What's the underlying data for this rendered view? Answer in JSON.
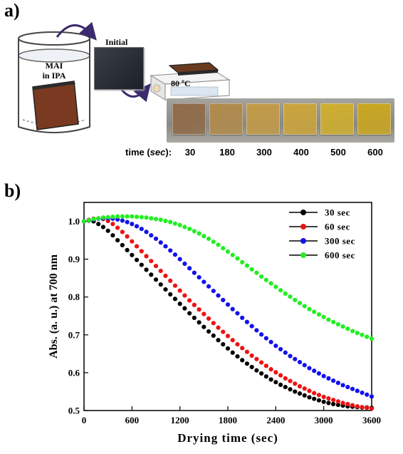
{
  "panel_a": {
    "label": "a)",
    "solution_line1": "MAI",
    "solution_line2": "in IPA",
    "initial_label": "Initial",
    "temperature": "80 ºC",
    "time_prefix": "time (",
    "time_unit": "sec",
    "time_suffix": "):",
    "films": [
      {
        "time": "30",
        "color": "#8f6a47"
      },
      {
        "time": "180",
        "color": "#b08a4a"
      },
      {
        "time": "300",
        "color": "#c29a45"
      },
      {
        "time": "400",
        "color": "#cba43a"
      },
      {
        "time": "500",
        "color": "#cfae2c"
      },
      {
        "time": "600",
        "color": "#c9a61e"
      }
    ]
  },
  "panel_b": {
    "label": "b)"
  },
  "chart_data": {
    "type": "scatter",
    "xlabel": "Drying time (sec)",
    "ylabel": "Abs. (a. u.) at 700 nm",
    "xlim": [
      0,
      3600
    ],
    "ylim": [
      0.5,
      1.05
    ],
    "xticks": [
      "0",
      "600",
      "1200",
      "1800",
      "2400",
      "3000",
      "3600"
    ],
    "yticks": [
      "0.5",
      "0.6",
      "0.7",
      "0.8",
      "0.9",
      "1.0"
    ],
    "legend_position": "top-right",
    "x": [
      0,
      60,
      120,
      180,
      240,
      300,
      360,
      420,
      480,
      540,
      600,
      660,
      720,
      780,
      840,
      900,
      960,
      1020,
      1080,
      1140,
      1200,
      1260,
      1320,
      1380,
      1440,
      1500,
      1560,
      1620,
      1680,
      1740,
      1800,
      1860,
      1920,
      1980,
      2040,
      2100,
      2160,
      2220,
      2280,
      2340,
      2400,
      2460,
      2520,
      2580,
      2640,
      2700,
      2760,
      2820,
      2880,
      2940,
      3000,
      3060,
      3120,
      3180,
      3240,
      3300,
      3360,
      3420,
      3480,
      3540,
      3600
    ],
    "series": [
      {
        "name": "30 sec",
        "color": "#000000",
        "values": [
          1.0,
          1.002,
          1.0,
          0.993,
          0.985,
          0.975,
          0.963,
          0.95,
          0.937,
          0.924,
          0.911,
          0.898,
          0.885,
          0.872,
          0.859,
          0.846,
          0.833,
          0.82,
          0.807,
          0.795,
          0.782,
          0.77,
          0.757,
          0.745,
          0.733,
          0.721,
          0.709,
          0.698,
          0.686,
          0.675,
          0.664,
          0.653,
          0.643,
          0.633,
          0.624,
          0.615,
          0.606,
          0.598,
          0.59,
          0.582,
          0.575,
          0.568,
          0.562,
          0.556,
          0.55,
          0.545,
          0.54,
          0.535,
          0.531,
          0.527,
          0.523,
          0.52,
          0.517,
          0.515,
          0.513,
          0.511,
          0.51,
          0.509,
          0.508,
          0.508,
          0.507
        ]
      },
      {
        "name": "60 sec",
        "color": "#ee1111",
        "values": [
          1.0,
          1.004,
          1.007,
          1.008,
          1.006,
          1.001,
          0.993,
          0.983,
          0.972,
          0.96,
          0.947,
          0.934,
          0.921,
          0.908,
          0.895,
          0.882,
          0.869,
          0.856,
          0.843,
          0.83,
          0.817,
          0.804,
          0.791,
          0.779,
          0.767,
          0.755,
          0.743,
          0.731,
          0.719,
          0.708,
          0.697,
          0.686,
          0.675,
          0.665,
          0.655,
          0.645,
          0.636,
          0.627,
          0.618,
          0.609,
          0.601,
          0.593,
          0.585,
          0.578,
          0.571,
          0.564,
          0.558,
          0.552,
          0.546,
          0.541,
          0.536,
          0.532,
          0.528,
          0.524,
          0.52,
          0.517,
          0.514,
          0.511,
          0.509,
          0.507,
          0.505
        ]
      },
      {
        "name": "300 sec",
        "color": "#1111ee",
        "values": [
          1.0,
          1.003,
          1.005,
          1.007,
          1.008,
          1.008,
          1.007,
          1.005,
          1.002,
          0.998,
          0.993,
          0.987,
          0.98,
          0.972,
          0.963,
          0.954,
          0.944,
          0.934,
          0.923,
          0.912,
          0.9,
          0.888,
          0.876,
          0.864,
          0.852,
          0.84,
          0.828,
          0.816,
          0.804,
          0.792,
          0.78,
          0.768,
          0.757,
          0.745,
          0.734,
          0.723,
          0.712,
          0.701,
          0.691,
          0.681,
          0.671,
          0.662,
          0.653,
          0.644,
          0.636,
          0.628,
          0.62,
          0.612,
          0.605,
          0.598,
          0.591,
          0.585,
          0.579,
          0.573,
          0.567,
          0.562,
          0.557,
          0.552,
          0.547,
          0.542,
          0.537
        ]
      },
      {
        "name": "600 sec",
        "color": "#22ee22",
        "values": [
          1.0,
          1.003,
          1.006,
          1.008,
          1.01,
          1.011,
          1.012,
          1.013,
          1.013,
          1.013,
          1.013,
          1.012,
          1.011,
          1.01,
          1.008,
          1.006,
          1.004,
          1.001,
          0.998,
          0.994,
          0.99,
          0.985,
          0.98,
          0.974,
          0.968,
          0.961,
          0.954,
          0.946,
          0.938,
          0.929,
          0.92,
          0.911,
          0.902,
          0.892,
          0.883,
          0.873,
          0.864,
          0.854,
          0.845,
          0.836,
          0.827,
          0.818,
          0.809,
          0.801,
          0.792,
          0.784,
          0.776,
          0.768,
          0.761,
          0.754,
          0.747,
          0.74,
          0.734,
          0.728,
          0.722,
          0.716,
          0.71,
          0.705,
          0.7,
          0.695,
          0.69
        ]
      }
    ]
  }
}
